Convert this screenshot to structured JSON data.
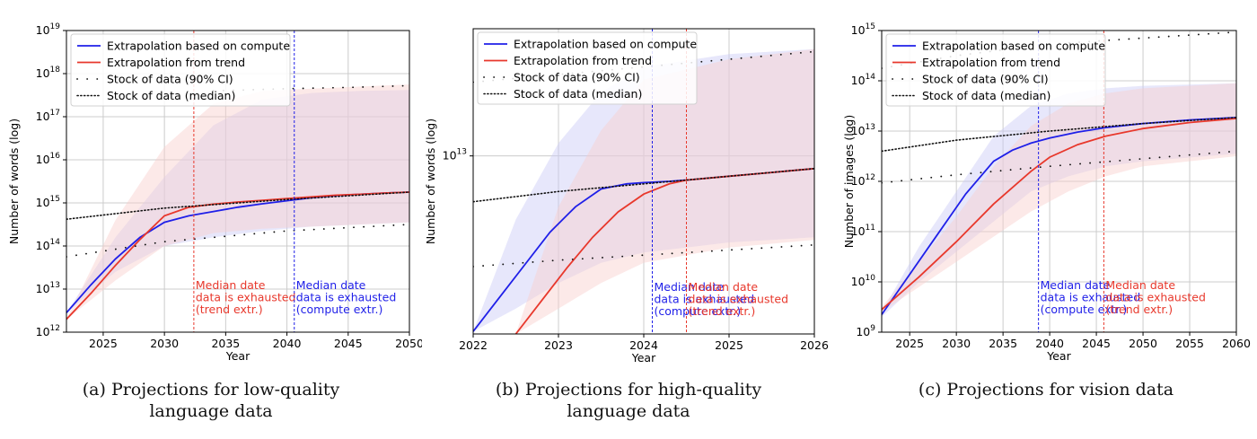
{
  "colors": {
    "compute": "#1f1fe8",
    "trend": "#e8382c",
    "compute_fill": "#c9c9f6",
    "trend_fill": "#f9cfcb",
    "grid": "#cccccc",
    "stock": "#111111"
  },
  "legend": {
    "compute": "Extrapolation based on compute",
    "trend": "Extrapolation from trend",
    "ci": "Stock of data (90% CI)",
    "median": "Stock of data (median)"
  },
  "panels": [
    {
      "id": "a",
      "caption_line1": "(a) Projections for low-quality",
      "caption_line2": "language data"
    },
    {
      "id": "b",
      "caption_line1": "(b) Projections for high-quality",
      "caption_line2": "language data"
    },
    {
      "id": "c",
      "caption_line1": "(c) Projections for vision data",
      "caption_line2": ""
    }
  ],
  "chart_data": [
    {
      "type": "line",
      "xlabel": "Year",
      "ylabel": "Number of words (log)",
      "xlim": [
        2022,
        2050
      ],
      "ylim_log10": [
        12,
        19
      ],
      "log_scale_y": true,
      "grid": true,
      "legend_placement": "top-left",
      "x_ticks": [
        "2025",
        "2030",
        "2035",
        "2040",
        "2045",
        "2050"
      ],
      "x_tick_values": [
        2025,
        2030,
        2035,
        2040,
        2045,
        2050
      ],
      "y_tick_exponents": [
        "12",
        "13",
        "14",
        "15",
        "16",
        "17",
        "18",
        "19"
      ],
      "y_tick_values": [
        12,
        13,
        14,
        15,
        16,
        17,
        18,
        19
      ],
      "series": [
        {
          "key": "compute",
          "x": [
            2022,
            2024,
            2026,
            2028,
            2030,
            2032,
            2034,
            2036,
            2038,
            2040,
            2042,
            2044,
            2046,
            2048,
            2050
          ],
          "log10_y": [
            12.45,
            13.1,
            13.7,
            14.2,
            14.55,
            14.7,
            14.8,
            14.9,
            14.98,
            15.05,
            15.12,
            15.17,
            15.2,
            15.23,
            15.25
          ]
        },
        {
          "key": "trend",
          "x": [
            2022,
            2024,
            2026,
            2028,
            2030,
            2032,
            2034,
            2036,
            2038,
            2040,
            2042,
            2044,
            2046,
            2048,
            2050
          ],
          "log10_y": [
            12.3,
            12.9,
            13.55,
            14.15,
            14.7,
            14.9,
            14.97,
            15.02,
            15.06,
            15.1,
            15.14,
            15.18,
            15.2,
            15.23,
            15.25
          ]
        },
        {
          "key": "median",
          "x": [
            2022,
            2030,
            2040,
            2050
          ],
          "log10_y": [
            14.62,
            14.88,
            15.08,
            15.25
          ]
        },
        {
          "key": "ci_low",
          "x": [
            2022,
            2030,
            2040,
            2050
          ],
          "log10_y": [
            13.75,
            14.1,
            14.35,
            14.5
          ]
        },
        {
          "key": "ci_high",
          "x": [
            2034,
            2040,
            2045,
            2050
          ],
          "log10_y": [
            17.6,
            17.65,
            17.68,
            17.72
          ]
        }
      ],
      "bands": [
        {
          "key": "compute",
          "x": [
            2022,
            2026,
            2030,
            2034,
            2038,
            2042,
            2046,
            2050
          ],
          "low": [
            12.45,
            13.4,
            14.0,
            14.2,
            14.35,
            14.45,
            14.5,
            14.55
          ],
          "high": [
            12.45,
            14.2,
            15.6,
            16.8,
            17.4,
            17.55,
            17.6,
            17.62
          ]
        },
        {
          "key": "trend",
          "x": [
            2022,
            2026,
            2030,
            2034,
            2038,
            2042,
            2046,
            2050
          ],
          "low": [
            12.3,
            13.2,
            14.0,
            14.3,
            14.4,
            14.45,
            14.5,
            14.55
          ],
          "high": [
            12.3,
            14.6,
            16.3,
            17.3,
            17.6,
            17.65,
            17.7,
            17.75
          ]
        }
      ],
      "annotations": [
        {
          "key": "trend",
          "x": 2032.4,
          "lines": [
            "Median date",
            "data is exhausted",
            "(trend extr.)"
          ]
        },
        {
          "key": "compute",
          "x": 2040.6,
          "lines": [
            "Median date",
            "data is exhausted",
            "(compute extr.)"
          ]
        }
      ]
    },
    {
      "type": "line",
      "xlabel": "Year",
      "ylabel": "Number of words (log)",
      "xlim": [
        2022,
        2026
      ],
      "ylim_log10": [
        12.3,
        13.5
      ],
      "log_scale_y": true,
      "grid": true,
      "legend_placement": "top-left",
      "x_ticks": [
        "2022",
        "2023",
        "2024",
        "2025",
        "2026"
      ],
      "x_tick_values": [
        2022,
        2023,
        2024,
        2025,
        2026
      ],
      "y_tick_exponents": [
        "13"
      ],
      "y_tick_values": [
        13
      ],
      "series": [
        {
          "key": "compute",
          "x": [
            2022,
            2022.3,
            2022.6,
            2022.9,
            2023.2,
            2023.5,
            2023.8,
            2024.0,
            2024.3,
            2024.5,
            2025,
            2025.5,
            2026
          ],
          "log10_y": [
            12.31,
            12.44,
            12.57,
            12.7,
            12.8,
            12.87,
            12.89,
            12.895,
            12.9,
            12.905,
            12.92,
            12.935,
            12.95
          ]
        },
        {
          "key": "trend",
          "x": [
            2022.5,
            2022.8,
            2023.1,
            2023.4,
            2023.7,
            2024.0,
            2024.3,
            2024.5,
            2025,
            2025.5,
            2026
          ],
          "log10_y": [
            12.3,
            12.43,
            12.56,
            12.68,
            12.78,
            12.85,
            12.89,
            12.905,
            12.92,
            12.935,
            12.95
          ]
        },
        {
          "key": "median",
          "x": [
            2022,
            2023,
            2024,
            2025,
            2026
          ],
          "log10_y": [
            12.82,
            12.86,
            12.89,
            12.92,
            12.95
          ]
        },
        {
          "key": "ci_low",
          "x": [
            2022,
            2023,
            2024,
            2025,
            2026
          ],
          "log10_y": [
            12.565,
            12.59,
            12.61,
            12.63,
            12.65
          ]
        },
        {
          "key": "ci_high",
          "x": [
            2022,
            2023,
            2024,
            2025,
            2026
          ],
          "log10_y": [
            13.29,
            13.32,
            13.35,
            13.38,
            13.41
          ]
        }
      ],
      "bands": [
        {
          "key": "compute",
          "x": [
            2022,
            2022.5,
            2023,
            2023.5,
            2024,
            2025,
            2026
          ],
          "low": [
            12.31,
            12.4,
            12.5,
            12.58,
            12.62,
            12.66,
            12.68
          ],
          "high": [
            12.31,
            12.75,
            13.05,
            13.25,
            13.35,
            13.4,
            13.42
          ]
        },
        {
          "key": "trend",
          "x": [
            2022.5,
            2023,
            2023.5,
            2024,
            2025,
            2026
          ],
          "low": [
            12.3,
            12.4,
            12.5,
            12.58,
            12.64,
            12.67
          ],
          "high": [
            12.3,
            12.8,
            13.1,
            13.3,
            13.38,
            13.42
          ]
        }
      ],
      "annotations": [
        {
          "key": "compute",
          "x": 2024.1,
          "lines": [
            "Median date",
            "data is exhausted",
            "(compute extr.)"
          ]
        },
        {
          "key": "trend",
          "x": 2024.5,
          "lines": [
            "Median date",
            "data is exhausted",
            "(trend extr.)"
          ]
        }
      ]
    },
    {
      "type": "line",
      "xlabel": "Year",
      "ylabel": "Number of images (log)",
      "xlim": [
        2022,
        2060
      ],
      "ylim_log10": [
        9,
        15
      ],
      "log_scale_y": true,
      "grid": true,
      "legend_placement": "top-left",
      "x_ticks": [
        "2025",
        "2030",
        "2035",
        "2040",
        "2045",
        "2050",
        "2055",
        "2060"
      ],
      "x_tick_values": [
        2025,
        2030,
        2035,
        2040,
        2045,
        2050,
        2055,
        2060
      ],
      "y_tick_exponents": [
        "9",
        "10",
        "11",
        "12",
        "13",
        "14",
        "15"
      ],
      "y_tick_values": [
        9,
        10,
        11,
        12,
        13,
        14,
        15
      ],
      "series": [
        {
          "key": "compute",
          "x": [
            2022,
            2025,
            2028,
            2031,
            2034,
            2036,
            2038,
            2040,
            2043,
            2046,
            2050,
            2055,
            2060
          ],
          "log10_y": [
            9.35,
            10.15,
            10.95,
            11.75,
            12.4,
            12.62,
            12.76,
            12.86,
            12.98,
            13.07,
            13.15,
            13.22,
            13.27
          ]
        },
        {
          "key": "trend",
          "x": [
            2022,
            2026,
            2030,
            2034,
            2038,
            2040,
            2043,
            2046,
            2050,
            2055,
            2060
          ],
          "log10_y": [
            9.45,
            10.1,
            10.8,
            11.55,
            12.2,
            12.48,
            12.73,
            12.9,
            13.05,
            13.17,
            13.25
          ]
        },
        {
          "key": "median",
          "x": [
            2022,
            2030,
            2040,
            2050,
            2060
          ],
          "log10_y": [
            12.6,
            12.82,
            13.0,
            13.15,
            13.27
          ]
        },
        {
          "key": "ci_low",
          "x": [
            2022,
            2030,
            2040,
            2050,
            2060
          ],
          "log10_y": [
            11.97,
            12.13,
            12.3,
            12.45,
            12.6
          ]
        },
        {
          "key": "ci_high",
          "x": [
            2022,
            2030,
            2040,
            2050,
            2060
          ],
          "log10_y": [
            14.25,
            14.5,
            14.73,
            14.85,
            14.97
          ]
        }
      ],
      "bands": [
        {
          "key": "compute",
          "x": [
            2022,
            2026,
            2030,
            2034,
            2038,
            2042,
            2046,
            2050,
            2060
          ],
          "low": [
            9.3,
            10.0,
            10.6,
            11.2,
            11.8,
            12.1,
            12.3,
            12.4,
            12.55
          ],
          "high": [
            9.4,
            10.7,
            11.8,
            12.9,
            13.5,
            13.75,
            13.85,
            13.9,
            13.95
          ]
        },
        {
          "key": "trend",
          "x": [
            2022,
            2026,
            2030,
            2034,
            2038,
            2042,
            2046,
            2050,
            2060
          ],
          "low": [
            9.4,
            9.9,
            10.4,
            10.9,
            11.4,
            11.8,
            12.1,
            12.3,
            12.5
          ],
          "high": [
            9.5,
            10.4,
            11.3,
            12.3,
            13.1,
            13.55,
            13.75,
            13.85,
            13.95
          ]
        }
      ],
      "annotations": [
        {
          "key": "compute",
          "x": 2038.8,
          "lines": [
            "Median date",
            "data is exhausted",
            "(compute extr.)"
          ]
        },
        {
          "key": "trend",
          "x": 2045.8,
          "lines": [
            "Median date",
            "data is exhausted",
            "(trend extr.)"
          ]
        }
      ]
    }
  ]
}
